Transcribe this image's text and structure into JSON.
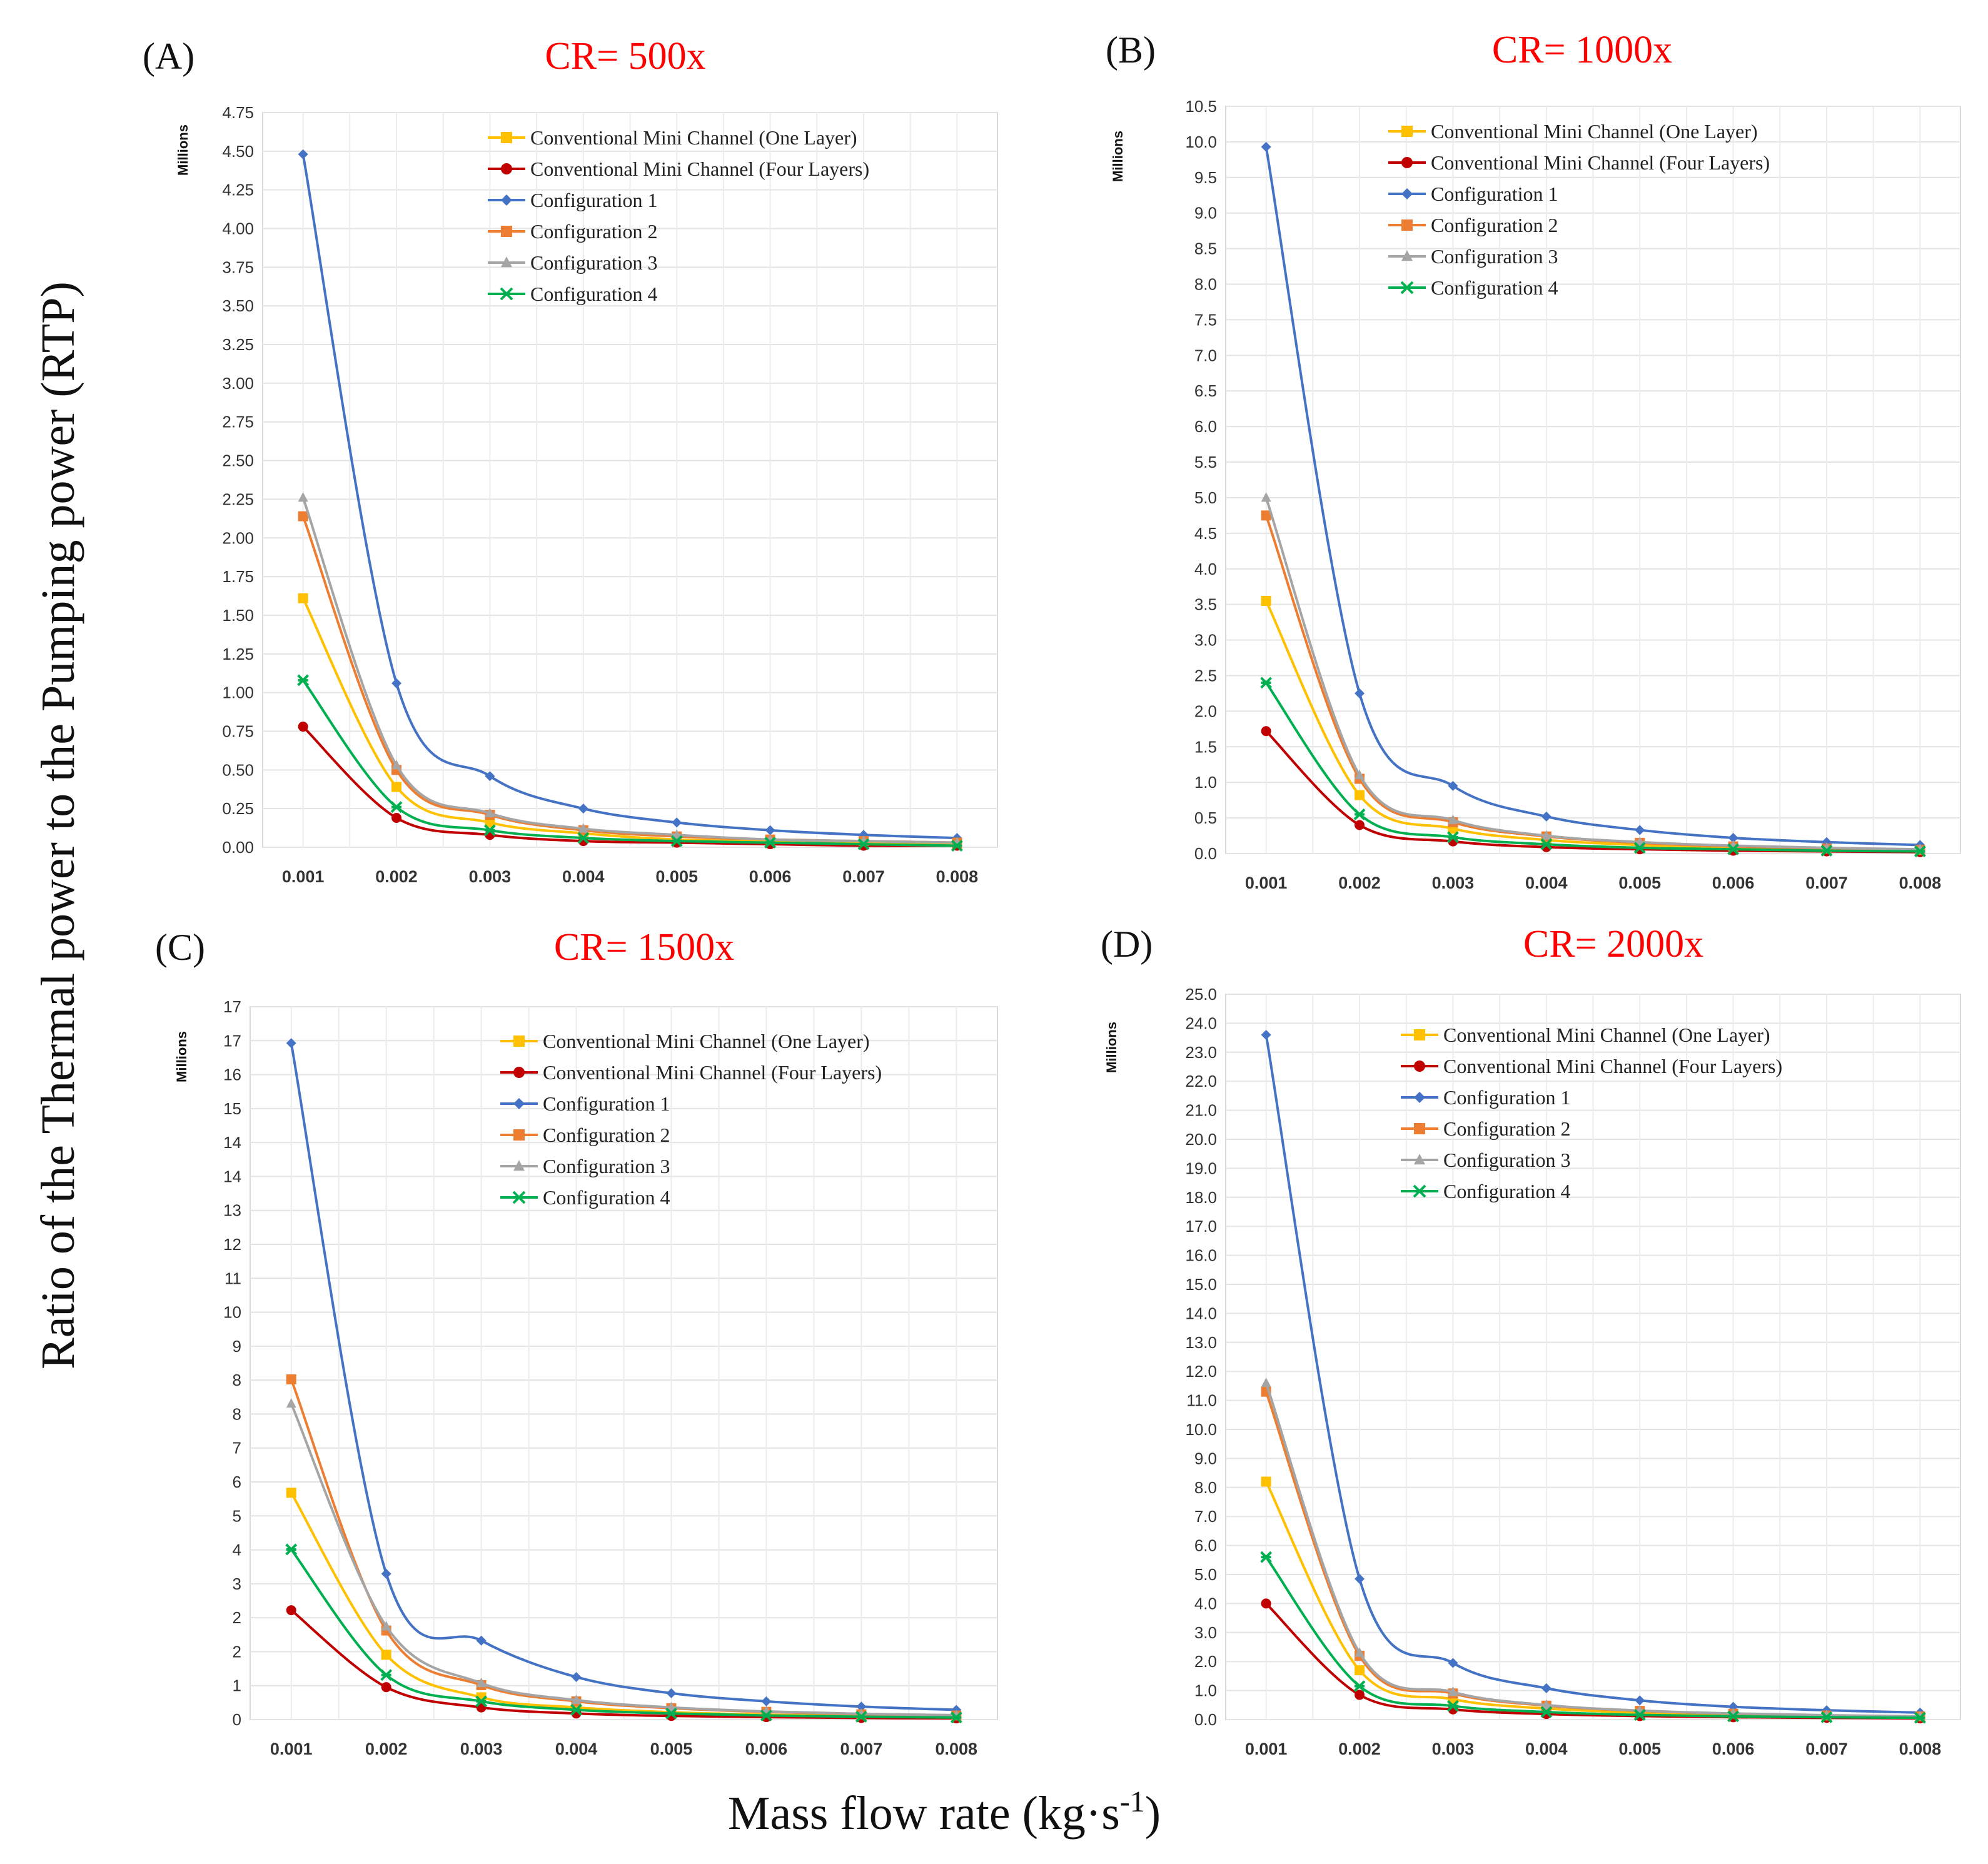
{
  "figure": {
    "ylabel": "Ratio of the Thermal power to the Pumping power (RTP)",
    "xlabel": "Mass flow rate (kg·s",
    "xlabel_sup": "-1",
    "xlabel_end": ")",
    "y_unit": "Millions"
  },
  "colors": {
    "Conventional Mini Channel (One Layer)": "#ffc000",
    "Conventional Mini Channel (Four Layers)": "#c00000",
    "Configuration 1": "#4472c4",
    "Configuration 2": "#ed7d31",
    "Configuration 3": "#a5a5a5",
    "Configuration 4": "#00b050"
  },
  "markers": {
    "Conventional Mini Channel (One Layer)": "square",
    "Conventional Mini Channel (Four Layers)": "circle",
    "Configuration 1": "diamond",
    "Configuration 2": "square",
    "Configuration 3": "triangle",
    "Configuration 4": "star"
  },
  "chart_data": [
    {
      "type": "line",
      "panel": "(A)",
      "title": "CR= 500x",
      "x": [
        0.001,
        0.002,
        0.003,
        0.004,
        0.005,
        0.006,
        0.007,
        0.008
      ],
      "x_tick_labels": [
        "0.001",
        "0.002",
        "0.003",
        "0.004",
        "0.005",
        "0.006",
        "0.007",
        "0.008"
      ],
      "ylim": [
        0,
        4.75
      ],
      "y_ticks": [
        "0.00",
        "0.25",
        "0.50",
        "0.75",
        "1.00",
        "1.25",
        "1.50",
        "1.75",
        "2.00",
        "2.25",
        "2.50",
        "2.75",
        "3.00",
        "3.25",
        "3.50",
        "3.75",
        "4.00",
        "4.25",
        "4.50",
        "4.75"
      ],
      "legend": "top-right",
      "grid": true,
      "series": [
        {
          "name": "Conventional Mini Channel (One Layer)",
          "values": [
            1.61,
            0.39,
            0.16,
            0.09,
            0.05,
            0.04,
            0.03,
            0.02
          ]
        },
        {
          "name": "Conventional Mini Channel (Four Layers)",
          "values": [
            0.78,
            0.19,
            0.08,
            0.04,
            0.03,
            0.02,
            0.01,
            0.01
          ]
        },
        {
          "name": "Configuration 1",
          "values": [
            4.48,
            1.06,
            0.46,
            0.25,
            0.16,
            0.11,
            0.08,
            0.06
          ]
        },
        {
          "name": "Configuration 2",
          "values": [
            2.14,
            0.5,
            0.21,
            0.11,
            0.07,
            0.05,
            0.04,
            0.03
          ]
        },
        {
          "name": "Configuration 3",
          "values": [
            2.26,
            0.53,
            0.22,
            0.12,
            0.08,
            0.05,
            0.04,
            0.03
          ]
        },
        {
          "name": "Configuration 4",
          "values": [
            1.08,
            0.26,
            0.11,
            0.06,
            0.04,
            0.03,
            0.02,
            0.01
          ]
        }
      ]
    },
    {
      "type": "line",
      "panel": "(B)",
      "title": "CR= 1000x",
      "x": [
        0.001,
        0.002,
        0.003,
        0.004,
        0.005,
        0.006,
        0.007,
        0.008
      ],
      "x_tick_labels": [
        "0.001",
        "0.002",
        "0.003",
        "0.004",
        "0.005",
        "0.006",
        "0.007",
        "0.008"
      ],
      "ylim": [
        0,
        10.5
      ],
      "y_ticks": [
        "0.0",
        "0.5",
        "1.0",
        "1.5",
        "2.0",
        "2.5",
        "3.0",
        "3.5",
        "4.0",
        "4.5",
        "5.0",
        "5.5",
        "6.0",
        "6.5",
        "7.0",
        "7.5",
        "8.0",
        "8.5",
        "9.0",
        "9.5",
        "10.0",
        "10.5"
      ],
      "legend": "top-right",
      "grid": true,
      "series": [
        {
          "name": "Conventional Mini Channel (One Layer)",
          "values": [
            3.55,
            0.82,
            0.35,
            0.19,
            0.12,
            0.08,
            0.06,
            0.04
          ]
        },
        {
          "name": "Conventional Mini Channel (Four Layers)",
          "values": [
            1.72,
            0.4,
            0.17,
            0.09,
            0.06,
            0.04,
            0.03,
            0.02
          ]
        },
        {
          "name": "Configuration 1",
          "values": [
            9.93,
            2.25,
            0.95,
            0.52,
            0.33,
            0.22,
            0.16,
            0.12
          ]
        },
        {
          "name": "Configuration 2",
          "values": [
            4.75,
            1.05,
            0.44,
            0.24,
            0.15,
            0.1,
            0.07,
            0.05
          ]
        },
        {
          "name": "Configuration 3",
          "values": [
            5.0,
            1.1,
            0.47,
            0.25,
            0.16,
            0.11,
            0.08,
            0.06
          ]
        },
        {
          "name": "Configuration 4",
          "values": [
            2.4,
            0.55,
            0.23,
            0.13,
            0.08,
            0.06,
            0.04,
            0.03
          ]
        }
      ]
    },
    {
      "type": "line",
      "panel": "(C)",
      "title": "CR= 1500x",
      "x": [
        0.001,
        0.002,
        0.003,
        0.004,
        0.005,
        0.006,
        0.007,
        0.008
      ],
      "x_tick_labels": [
        "0.001",
        "0.002",
        "0.003",
        "0.004",
        "0.005",
        "0.006",
        "0.007",
        "0.008"
      ],
      "ylim": [
        0,
        17.6
      ],
      "y_ticks": [
        "0",
        "1",
        "2",
        "2",
        "3",
        "4",
        "5",
        "6",
        "7",
        "8",
        "8",
        "9",
        "10",
        "11",
        "12",
        "13",
        "14",
        "14",
        "15",
        "16",
        "17",
        "17"
      ],
      "legend": "top-right",
      "grid": true,
      "series": [
        {
          "name": "Conventional Mini Channel (One Layer)",
          "values": [
            5.6,
            1.6,
            0.55,
            0.3,
            0.18,
            0.12,
            0.08,
            0.06
          ]
        },
        {
          "name": "Conventional Mini Channel (Four Layers)",
          "values": [
            2.7,
            0.8,
            0.3,
            0.15,
            0.09,
            0.06,
            0.04,
            0.03
          ]
        },
        {
          "name": "Configuration 1",
          "values": [
            16.7,
            3.6,
            1.95,
            1.05,
            0.65,
            0.45,
            0.32,
            0.24
          ]
        },
        {
          "name": "Configuration 2",
          "values": [
            8.4,
            2.2,
            0.85,
            0.45,
            0.28,
            0.19,
            0.13,
            0.1
          ]
        },
        {
          "name": "Configuration 3",
          "values": [
            7.8,
            2.3,
            0.9,
            0.48,
            0.3,
            0.2,
            0.14,
            0.11
          ]
        },
        {
          "name": "Configuration 4",
          "values": [
            4.2,
            1.1,
            0.45,
            0.24,
            0.15,
            0.1,
            0.07,
            0.05
          ]
        }
      ]
    },
    {
      "type": "line",
      "panel": "(D)",
      "title": "CR= 2000x",
      "x": [
        0.001,
        0.002,
        0.003,
        0.004,
        0.005,
        0.006,
        0.007,
        0.008
      ],
      "x_tick_labels": [
        "0.001",
        "0.002",
        "0.003",
        "0.004",
        "0.005",
        "0.006",
        "0.007",
        "0.008"
      ],
      "ylim": [
        0,
        25.0
      ],
      "y_ticks": [
        "0.0",
        "1.0",
        "2.0",
        "3.0",
        "4.0",
        "5.0",
        "6.0",
        "7.0",
        "8.0",
        "9.0",
        "10.0",
        "11.0",
        "12.0",
        "13.0",
        "14.0",
        "15.0",
        "16.0",
        "17.0",
        "18.0",
        "19.0",
        "20.0",
        "21.0",
        "22.0",
        "23.0",
        "24.0",
        "25.0"
      ],
      "legend": "top-right",
      "grid": true,
      "series": [
        {
          "name": "Conventional Mini Channel (One Layer)",
          "values": [
            8.2,
            1.7,
            0.7,
            0.38,
            0.24,
            0.16,
            0.12,
            0.09
          ]
        },
        {
          "name": "Conventional Mini Channel (Four Layers)",
          "values": [
            4.0,
            0.85,
            0.35,
            0.19,
            0.12,
            0.08,
            0.06,
            0.04
          ]
        },
        {
          "name": "Configuration 1",
          "values": [
            23.6,
            4.85,
            1.95,
            1.08,
            0.66,
            0.44,
            0.32,
            0.24
          ]
        },
        {
          "name": "Configuration 2",
          "values": [
            11.3,
            2.2,
            0.9,
            0.48,
            0.3,
            0.2,
            0.14,
            0.11
          ]
        },
        {
          "name": "Configuration 3",
          "values": [
            11.6,
            2.3,
            0.95,
            0.5,
            0.31,
            0.21,
            0.15,
            0.11
          ]
        },
        {
          "name": "Configuration 4",
          "values": [
            5.6,
            1.15,
            0.47,
            0.26,
            0.16,
            0.11,
            0.08,
            0.06
          ]
        }
      ]
    }
  ]
}
